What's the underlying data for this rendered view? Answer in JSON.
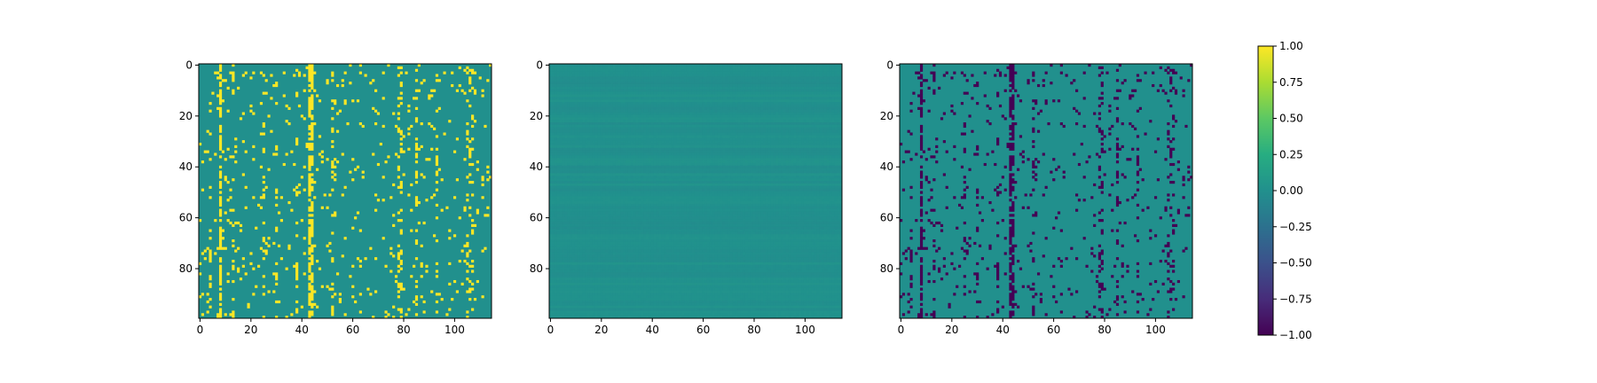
{
  "chart_data": [
    {
      "type": "heatmap",
      "title": "",
      "xlabel": "",
      "ylabel": "",
      "colormap": "viridis",
      "n_rows": 100,
      "n_cols": 115,
      "value_range": [
        0,
        1
      ],
      "background_value": 0,
      "xticks": [
        0,
        20,
        40,
        60,
        80,
        100
      ],
      "yticks": [
        0,
        20,
        40,
        60,
        80
      ],
      "dense_columns": [
        8,
        43,
        44
      ],
      "medium_columns": [
        4,
        13,
        25,
        30,
        38,
        52,
        78,
        79,
        85,
        93,
        105,
        106,
        107
      ],
      "sparse_density": 0.04,
      "description_of_values": "binary mask: sparse cells equal 1 (yellow), rest 0 (teal)"
    },
    {
      "type": "heatmap",
      "title": "",
      "xlabel": "",
      "ylabel": "",
      "colormap": "viridis",
      "n_rows": 100,
      "n_cols": 115,
      "value_range": [
        -0.03,
        0.06
      ],
      "xticks": [
        0,
        20,
        40,
        60,
        80,
        100
      ],
      "yticks": [
        0,
        20,
        40,
        60,
        80
      ]
    },
    {
      "type": "heatmap",
      "title": "",
      "xlabel": "",
      "ylabel": "",
      "colormap": "viridis",
      "n_rows": 100,
      "n_cols": 115,
      "value_range": [
        -1,
        0
      ],
      "background_value": 0,
      "xticks": [
        0,
        20,
        40,
        60,
        80,
        100
      ],
      "yticks": [
        0,
        20,
        40,
        60,
        80
      ]
    }
  ],
  "colorbar": {
    "min": -1.0,
    "max": 1.0,
    "ticks": [
      1.0,
      0.75,
      0.5,
      0.25,
      0.0,
      -0.25,
      -0.5,
      -0.75,
      -1.0
    ],
    "tick_labels": [
      "1.00",
      "0.75",
      "0.50",
      "0.25",
      "0.00",
      "−0.25",
      "−0.50",
      "−0.75",
      "−1.00"
    ]
  },
  "colors": {
    "viridis_min": "#440154",
    "viridis_mid": "#21918c",
    "viridis_max": "#fde725",
    "axis": "#000000",
    "background": "#ffffff"
  }
}
